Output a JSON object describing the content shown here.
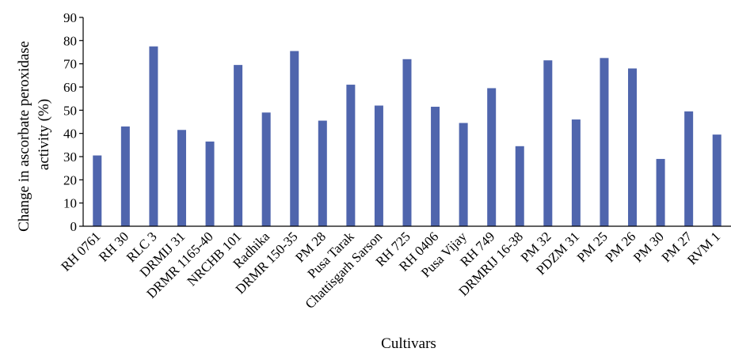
{
  "chart_data": {
    "type": "bar",
    "title": "",
    "xlabel": "Cultivars",
    "ylabel": "Change in ascorbate peroxidase activity (%)",
    "ylabel_lines": [
      "Change in ascorbate peroxidase",
      "activity (%)"
    ],
    "ylim": [
      0,
      90
    ],
    "yticks": [
      0,
      10,
      20,
      30,
      40,
      50,
      60,
      70,
      80,
      90
    ],
    "grid": false,
    "legend": "none",
    "bar_color": "#4f65ad",
    "categories": [
      "RH 0761",
      "RH 30",
      "RLC 3",
      "DRMIJ 31",
      "DRMR 1165-40",
      "NRCHB 101",
      "Radhika",
      "DRMR 150-35",
      "PM 28",
      "Pusa Tarak",
      "Chattisgarh Sarson",
      "RH 725",
      "RH 0406",
      "Pusa Vijay",
      "RH 749",
      "DRMRIJ 16-38",
      "PM 32",
      "PDZM 31",
      "PM 25",
      "PM 26",
      "PM 30",
      "PM 27",
      "RVM 1"
    ],
    "values": [
      30.5,
      43,
      77.5,
      41.5,
      36.5,
      69.5,
      49,
      75.5,
      45.5,
      61,
      52,
      72,
      51.5,
      44.5,
      59.5,
      34.5,
      71.5,
      46,
      72.5,
      68,
      29,
      49.5,
      39.5
    ]
  }
}
